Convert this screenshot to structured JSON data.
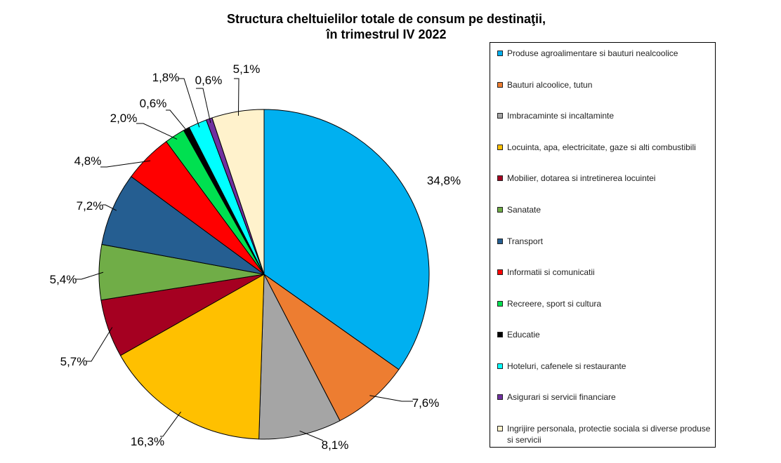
{
  "chart_data": {
    "type": "pie",
    "title": "Structura cheltuielilor totale de consum pe destinaţii,",
    "subtitle": "în trimestrul IV 2022",
    "start_angle_deg": 0,
    "direction": "clockwise",
    "legend_position": "right",
    "slices": [
      {
        "name": "Produse agroalimentare si bauturi nealcoolice",
        "value": 34.8,
        "label": "34,8%",
        "color": "#00B0F0"
      },
      {
        "name": "Bauturi alcoolice, tutun",
        "value": 7.6,
        "label": "7,6%",
        "color": "#ED7D31"
      },
      {
        "name": "Imbracaminte si incaltaminte",
        "value": 8.1,
        "label": "8,1%",
        "color": "#A5A5A5"
      },
      {
        "name": "Locuinta, apa, electricitate, gaze si alti combustibili",
        "value": 16.3,
        "label": "16,3%",
        "color": "#FFC000"
      },
      {
        "name": "Mobilier, dotarea si intretinerea locuintei",
        "value": 5.7,
        "label": "5,7%",
        "color": "#A50021"
      },
      {
        "name": "Sanatate",
        "value": 5.4,
        "label": "5,4%",
        "color": "#70AD47"
      },
      {
        "name": "Transport",
        "value": 7.2,
        "label": "7,2%",
        "color": "#255E91"
      },
      {
        "name": "Informatii si comunicatii",
        "value": 4.8,
        "label": "4,8%",
        "color": "#FF0000"
      },
      {
        "name": "Recreere, sport si cultura",
        "value": 2.0,
        "label": "2,0%",
        "color": "#00E050"
      },
      {
        "name": "Educatie",
        "value": 0.6,
        "label": "0,6%",
        "color": "#000000"
      },
      {
        "name": "Hoteluri, cafenele si restaurante",
        "value": 1.8,
        "label": "1,8%",
        "color": "#00FFFF"
      },
      {
        "name": "Asigurari si servicii financiare",
        "value": 0.6,
        "label": "0,6%",
        "color": "#7030A0"
      },
      {
        "name": "Ingrijire personala, protectie sociala si diverse produse si servicii",
        "value": 5.1,
        "label": "5,1%",
        "color": "#FFF2CC"
      }
    ]
  }
}
